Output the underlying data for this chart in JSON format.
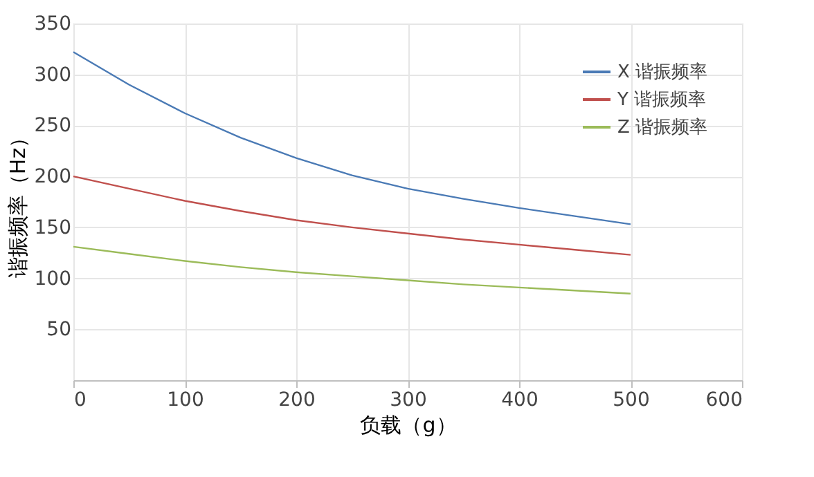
{
  "chart_data": {
    "type": "line",
    "xlabel": "负载（g）",
    "ylabel": "谐振频率（Hz）",
    "x": [
      0,
      50,
      100,
      150,
      200,
      250,
      300,
      350,
      400,
      450,
      500
    ],
    "series": [
      {
        "name": "X 谐振频率",
        "color": "#4a7ab5",
        "values": [
          322,
          290,
          262,
          238,
          218,
          201,
          188,
          178,
          169,
          161,
          153
        ]
      },
      {
        "name": "Y 谐振频率",
        "color": "#c0504d",
        "values": [
          200,
          188,
          176,
          166,
          157,
          150,
          144,
          138,
          133,
          128,
          123
        ]
      },
      {
        "name": "Z 谐振频率",
        "color": "#9bbb59",
        "values": [
          131,
          124,
          117,
          111,
          106,
          102,
          98,
          94,
          91,
          88,
          85
        ]
      }
    ],
    "xlim": [
      0,
      600
    ],
    "xticks": [
      0,
      100,
      200,
      300,
      400,
      500,
      600
    ],
    "ylim": [
      0,
      350
    ],
    "yticks": [
      {
        "value": 0,
        "label": null
      },
      50,
      100,
      150,
      200,
      250,
      300,
      350
    ],
    "grid": true,
    "legend": "top right",
    "marker": "none",
    "line_style": "solid"
  }
}
